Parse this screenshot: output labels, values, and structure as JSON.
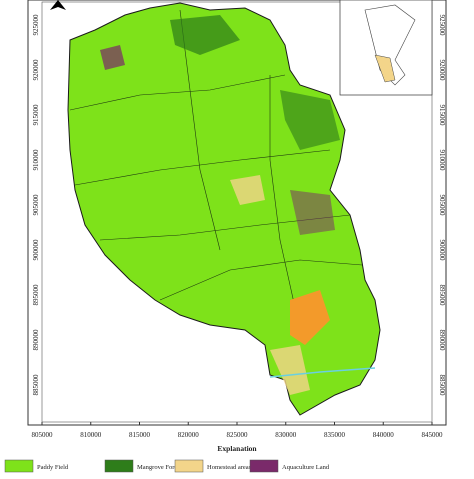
{
  "map": {
    "x_ticks": [
      805000,
      810000,
      815000,
      820000,
      825000,
      830000,
      835000,
      840000,
      845000
    ],
    "y_ticks": [
      925000,
      920000,
      915000,
      910000,
      905000,
      900000,
      895000,
      890000,
      885000
    ],
    "legend": {
      "title": "Explanation",
      "items": [
        {
          "label": "Paddy Field",
          "color": "#7ee21a"
        },
        {
          "label": "Mangrove Forest",
          "color": "#2e7d1a"
        },
        {
          "label": "Homestead areas",
          "color": "#f3d58a"
        },
        {
          "label": "Aquaculture Land",
          "color": "#7a2a6a"
        }
      ]
    }
  }
}
